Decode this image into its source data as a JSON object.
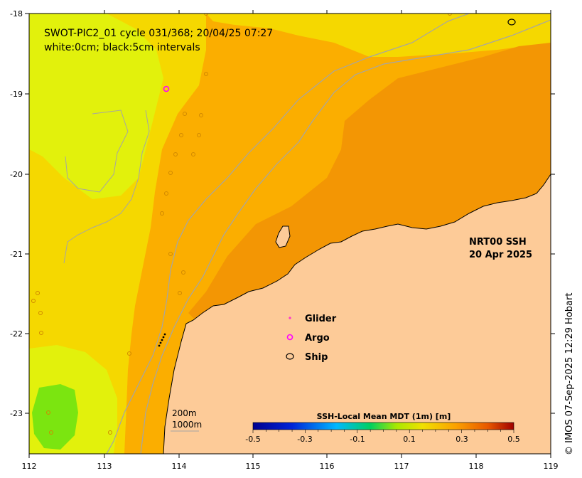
{
  "title": {
    "line1": "SWOT-PIC2_01 cycle 031/368; 20/04/25 07:27",
    "line2": "white:0cm; black:5cm intervals"
  },
  "product": {
    "line1": "NRT00 SSH",
    "line2": "20 Apr 2025"
  },
  "legend": {
    "glider": "Glider",
    "argo": "Argo",
    "ship": "Ship",
    "glider_symbol": "•",
    "argo_symbol": "o",
    "ship_symbol": "o",
    "glider_color": "#ff33cc",
    "argo_color": "#ff00ff"
  },
  "isobaths": {
    "label_1": "200m",
    "label_2": "1000m"
  },
  "colorbar": {
    "title": "SSH-Local Mean MDT (1m) [m]",
    "ticks": [
      "-0.5",
      "-0.3",
      "-0.1",
      "0.1",
      "0.3",
      "0.5"
    ],
    "min": -0.5,
    "max": 0.5
  },
  "axes": {
    "lon_ticks": [
      "112",
      "113",
      "114",
      "115",
      "116",
      "117",
      "118",
      "119"
    ],
    "lat_ticks": [
      "-18",
      "-19",
      "-20",
      "-21",
      "-22",
      "-23"
    ]
  },
  "credit": "© IMOS 07-Sep-2025 12:29 Hobart",
  "colors": {
    "land": "#fdcb98",
    "ssh_high": "#f39604",
    "ssh_mid": "#fbae00",
    "ssh_low": "#f5d800",
    "ssh_lower": "#e2f10c",
    "ssh_min": "#7be510",
    "isobath": "#a5a5a5"
  }
}
